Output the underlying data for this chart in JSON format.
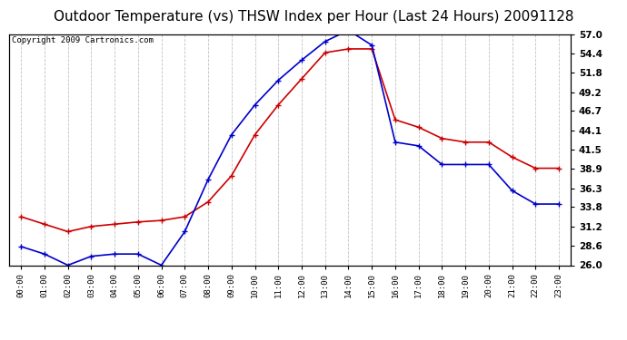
{
  "title": "Outdoor Temperature (vs) THSW Index per Hour (Last 24 Hours) 20091128",
  "copyright": "Copyright 2009 Cartronics.com",
  "hours": [
    "00:00",
    "01:00",
    "02:00",
    "03:00",
    "04:00",
    "05:00",
    "06:00",
    "07:00",
    "08:00",
    "09:00",
    "10:00",
    "11:00",
    "12:00",
    "13:00",
    "14:00",
    "15:00",
    "16:00",
    "17:00",
    "18:00",
    "19:00",
    "20:00",
    "21:00",
    "22:00",
    "23:00"
  ],
  "temp": [
    32.5,
    31.5,
    30.5,
    31.2,
    31.5,
    31.8,
    32.0,
    32.5,
    34.5,
    38.0,
    43.5,
    47.5,
    51.0,
    54.5,
    55.0,
    55.0,
    45.5,
    44.5,
    43.0,
    42.5,
    42.5,
    40.5,
    39.0,
    39.0
  ],
  "thsw": [
    28.5,
    27.5,
    26.0,
    27.2,
    27.5,
    27.5,
    26.0,
    30.5,
    37.5,
    43.5,
    47.5,
    50.8,
    53.5,
    56.0,
    57.5,
    55.5,
    42.5,
    42.0,
    39.5,
    39.5,
    39.5,
    36.0,
    34.2,
    34.2
  ],
  "temp_color": "#cc0000",
  "thsw_color": "#0000cc",
  "ylim_min": 26.0,
  "ylim_max": 57.0,
  "yticks": [
    26.0,
    28.6,
    31.2,
    33.8,
    36.3,
    38.9,
    41.5,
    44.1,
    46.7,
    49.2,
    51.8,
    54.4,
    57.0
  ],
  "ytick_labels": [
    "26.0",
    "28.6",
    "31.2",
    "33.8",
    "36.3",
    "38.9",
    "41.5",
    "44.1",
    "46.7",
    "49.2",
    "51.8",
    "54.4",
    "57.0"
  ],
  "bg_color": "#ffffff",
  "plot_bg_color": "#ffffff",
  "grid_color": "#bbbbbb",
  "title_fontsize": 11,
  "copyright_fontsize": 6.5,
  "marker": "+",
  "marker_size": 4,
  "line_width": 1.2
}
